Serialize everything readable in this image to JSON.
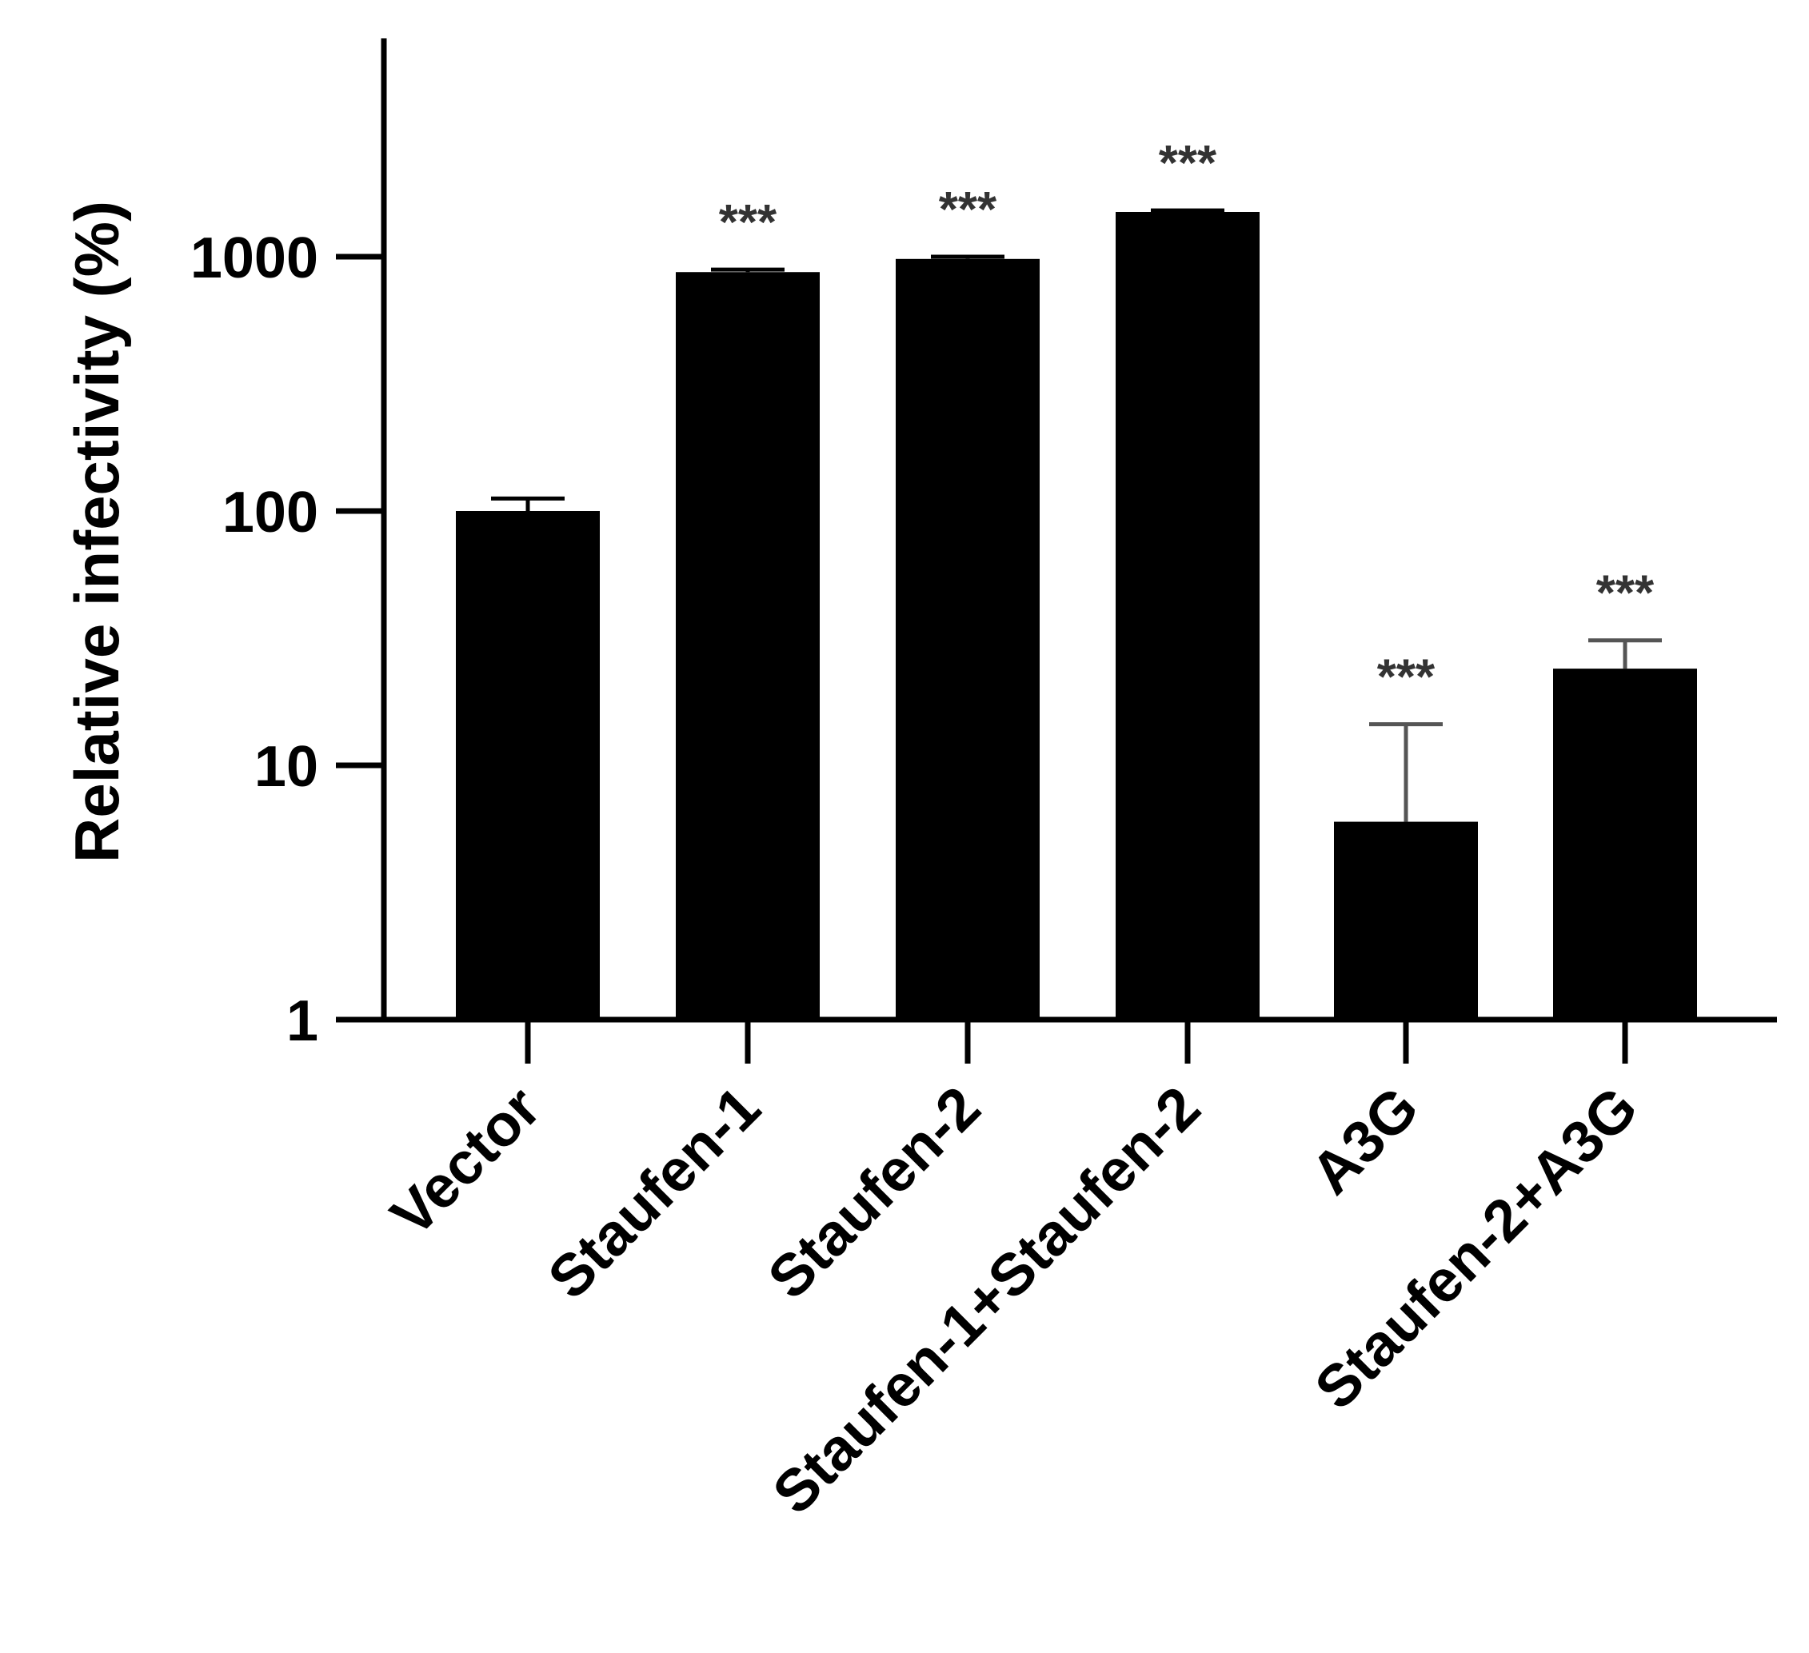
{
  "chart_data": {
    "type": "bar",
    "title": "",
    "xlabel": "",
    "ylabel": "Relative infectivity (%)",
    "yscale": "log",
    "ylim": [
      1,
      7000
    ],
    "yticks": [
      {
        "value": 1,
        "label": "1"
      },
      {
        "value": 10,
        "label": "10"
      },
      {
        "value": 100,
        "label": "100"
      },
      {
        "value": 1000,
        "label": "1000"
      }
    ],
    "categories": [
      "Vector",
      "Staufen-1",
      "Staufen-2",
      "Staufen-1+Staufen-2",
      "A3G",
      "Staufen-2+A3G"
    ],
    "values": [
      100,
      870,
      980,
      1500,
      6,
      24
    ],
    "error_upper": [
      112,
      890,
      1000,
      1520,
      14.5,
      31
    ],
    "annotations": [
      "",
      "***",
      "***",
      "***",
      "***",
      "***"
    ],
    "grid": false,
    "legend": "none",
    "colors": {
      "bar": "#000000",
      "axis": "#000000",
      "error_bar": "#555555",
      "annotation": "#333333"
    }
  }
}
